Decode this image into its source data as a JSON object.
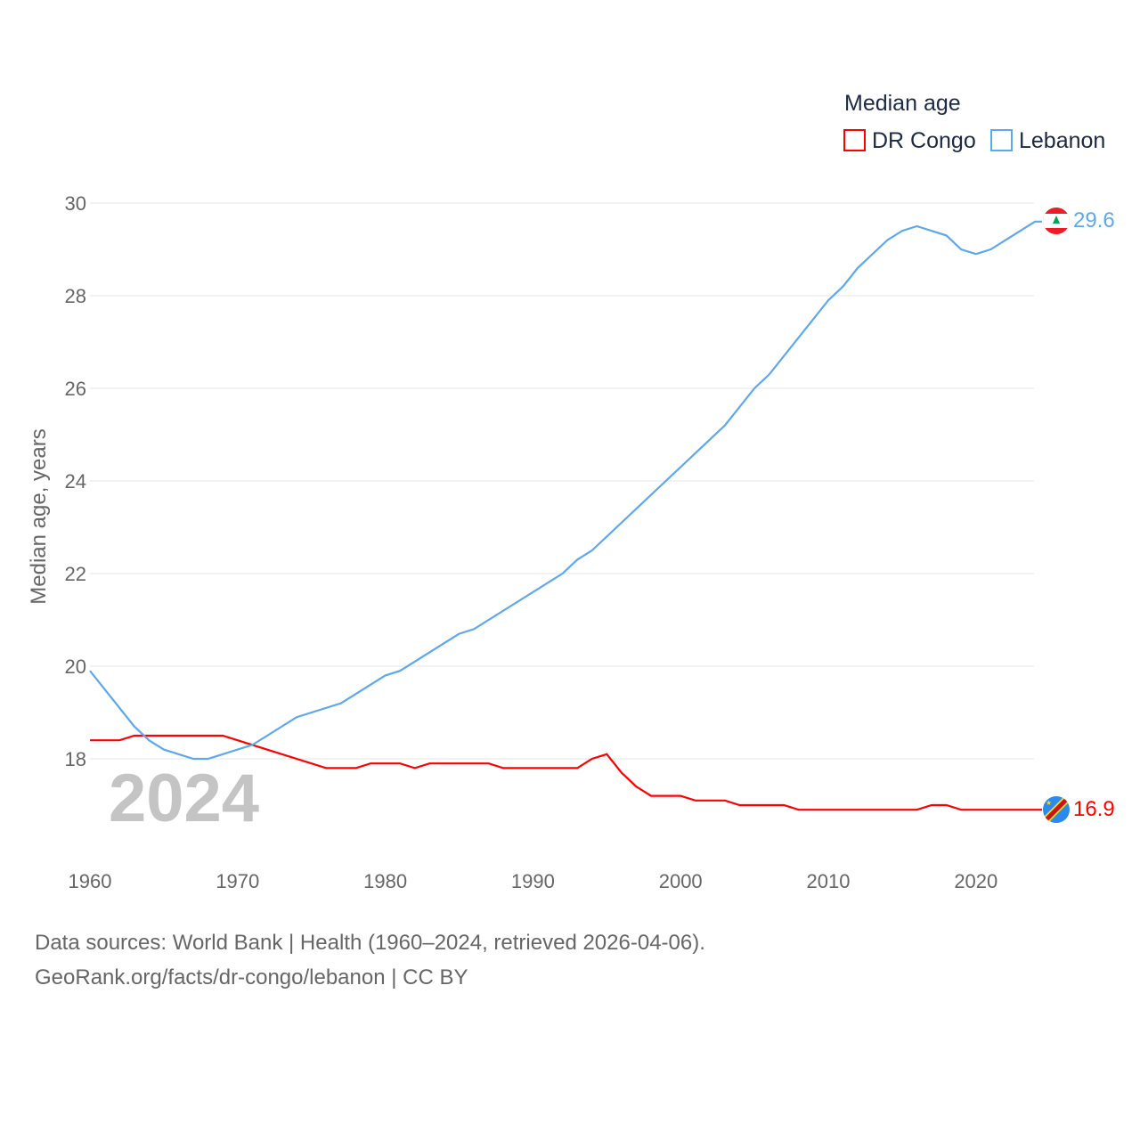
{
  "chart_data": {
    "type": "line",
    "legend_title": "Median age",
    "legend_position": "top-right",
    "ylabel": "Median age, years",
    "xlabel": "",
    "ylim": [
      16.3,
      30
    ],
    "xlim": [
      1960,
      2024
    ],
    "yticks": [
      18,
      20,
      22,
      24,
      26,
      28,
      30
    ],
    "xticks": [
      1960,
      1970,
      1980,
      1990,
      2000,
      2010,
      2020
    ],
    "grid": true,
    "year_label": "2024",
    "series": [
      {
        "name": "DR Congo",
        "color": "#ff0000",
        "end_label": "16.9",
        "points": [
          [
            1960,
            18.4
          ],
          [
            1962,
            18.4
          ],
          [
            1963,
            18.5
          ],
          [
            1969,
            18.5
          ],
          [
            1970,
            18.4
          ],
          [
            1971,
            18.3
          ],
          [
            1976,
            17.8
          ],
          [
            1978,
            17.8
          ],
          [
            1979,
            17.9
          ],
          [
            1981,
            17.9
          ],
          [
            1982,
            17.8
          ],
          [
            1983,
            17.9
          ],
          [
            1987,
            17.9
          ],
          [
            1988,
            17.8
          ],
          [
            1993,
            17.8
          ],
          [
            1994,
            18.0
          ],
          [
            1995,
            18.1
          ],
          [
            1996,
            17.7
          ],
          [
            1997,
            17.4
          ],
          [
            1998,
            17.2
          ],
          [
            2000,
            17.2
          ],
          [
            2001,
            17.1
          ],
          [
            2003,
            17.1
          ],
          [
            2004,
            17.0
          ],
          [
            2007,
            17.0
          ],
          [
            2008,
            16.9
          ],
          [
            2016,
            16.9
          ],
          [
            2017,
            17.0
          ],
          [
            2018,
            17.0
          ],
          [
            2019,
            16.9
          ],
          [
            2024,
            16.9
          ]
        ]
      },
      {
        "name": "Lebanon",
        "color": "#5ea8ee",
        "end_label": "29.6",
        "points": [
          [
            1960,
            19.9
          ],
          [
            1963,
            18.7
          ],
          [
            1964,
            18.4
          ],
          [
            1965,
            18.2
          ],
          [
            1967,
            18.0
          ],
          [
            1968,
            18.0
          ],
          [
            1970,
            18.2
          ],
          [
            1971,
            18.3
          ],
          [
            1974,
            18.9
          ],
          [
            1977,
            19.2
          ],
          [
            1980,
            19.8
          ],
          [
            1981,
            19.9
          ],
          [
            1985,
            20.7
          ],
          [
            1986,
            20.8
          ],
          [
            1992,
            22.0
          ],
          [
            1993,
            22.3
          ],
          [
            1994,
            22.5
          ],
          [
            2003,
            25.2
          ],
          [
            2005,
            26.0
          ],
          [
            2006,
            26.3
          ],
          [
            2010,
            27.9
          ],
          [
            2011,
            28.2
          ],
          [
            2012,
            28.6
          ],
          [
            2014,
            29.2
          ],
          [
            2015,
            29.4
          ],
          [
            2016,
            29.5
          ],
          [
            2018,
            29.3
          ],
          [
            2019,
            29.0
          ],
          [
            2020,
            28.9
          ],
          [
            2021,
            29.0
          ],
          [
            2024,
            29.6
          ]
        ]
      }
    ]
  },
  "footer": {
    "line1": "Data sources: World Bank | Health (1960–2024, retrieved 2026-04-06).",
    "line2": "GeoRank.org/facts/dr-congo/lebanon | CC BY"
  }
}
